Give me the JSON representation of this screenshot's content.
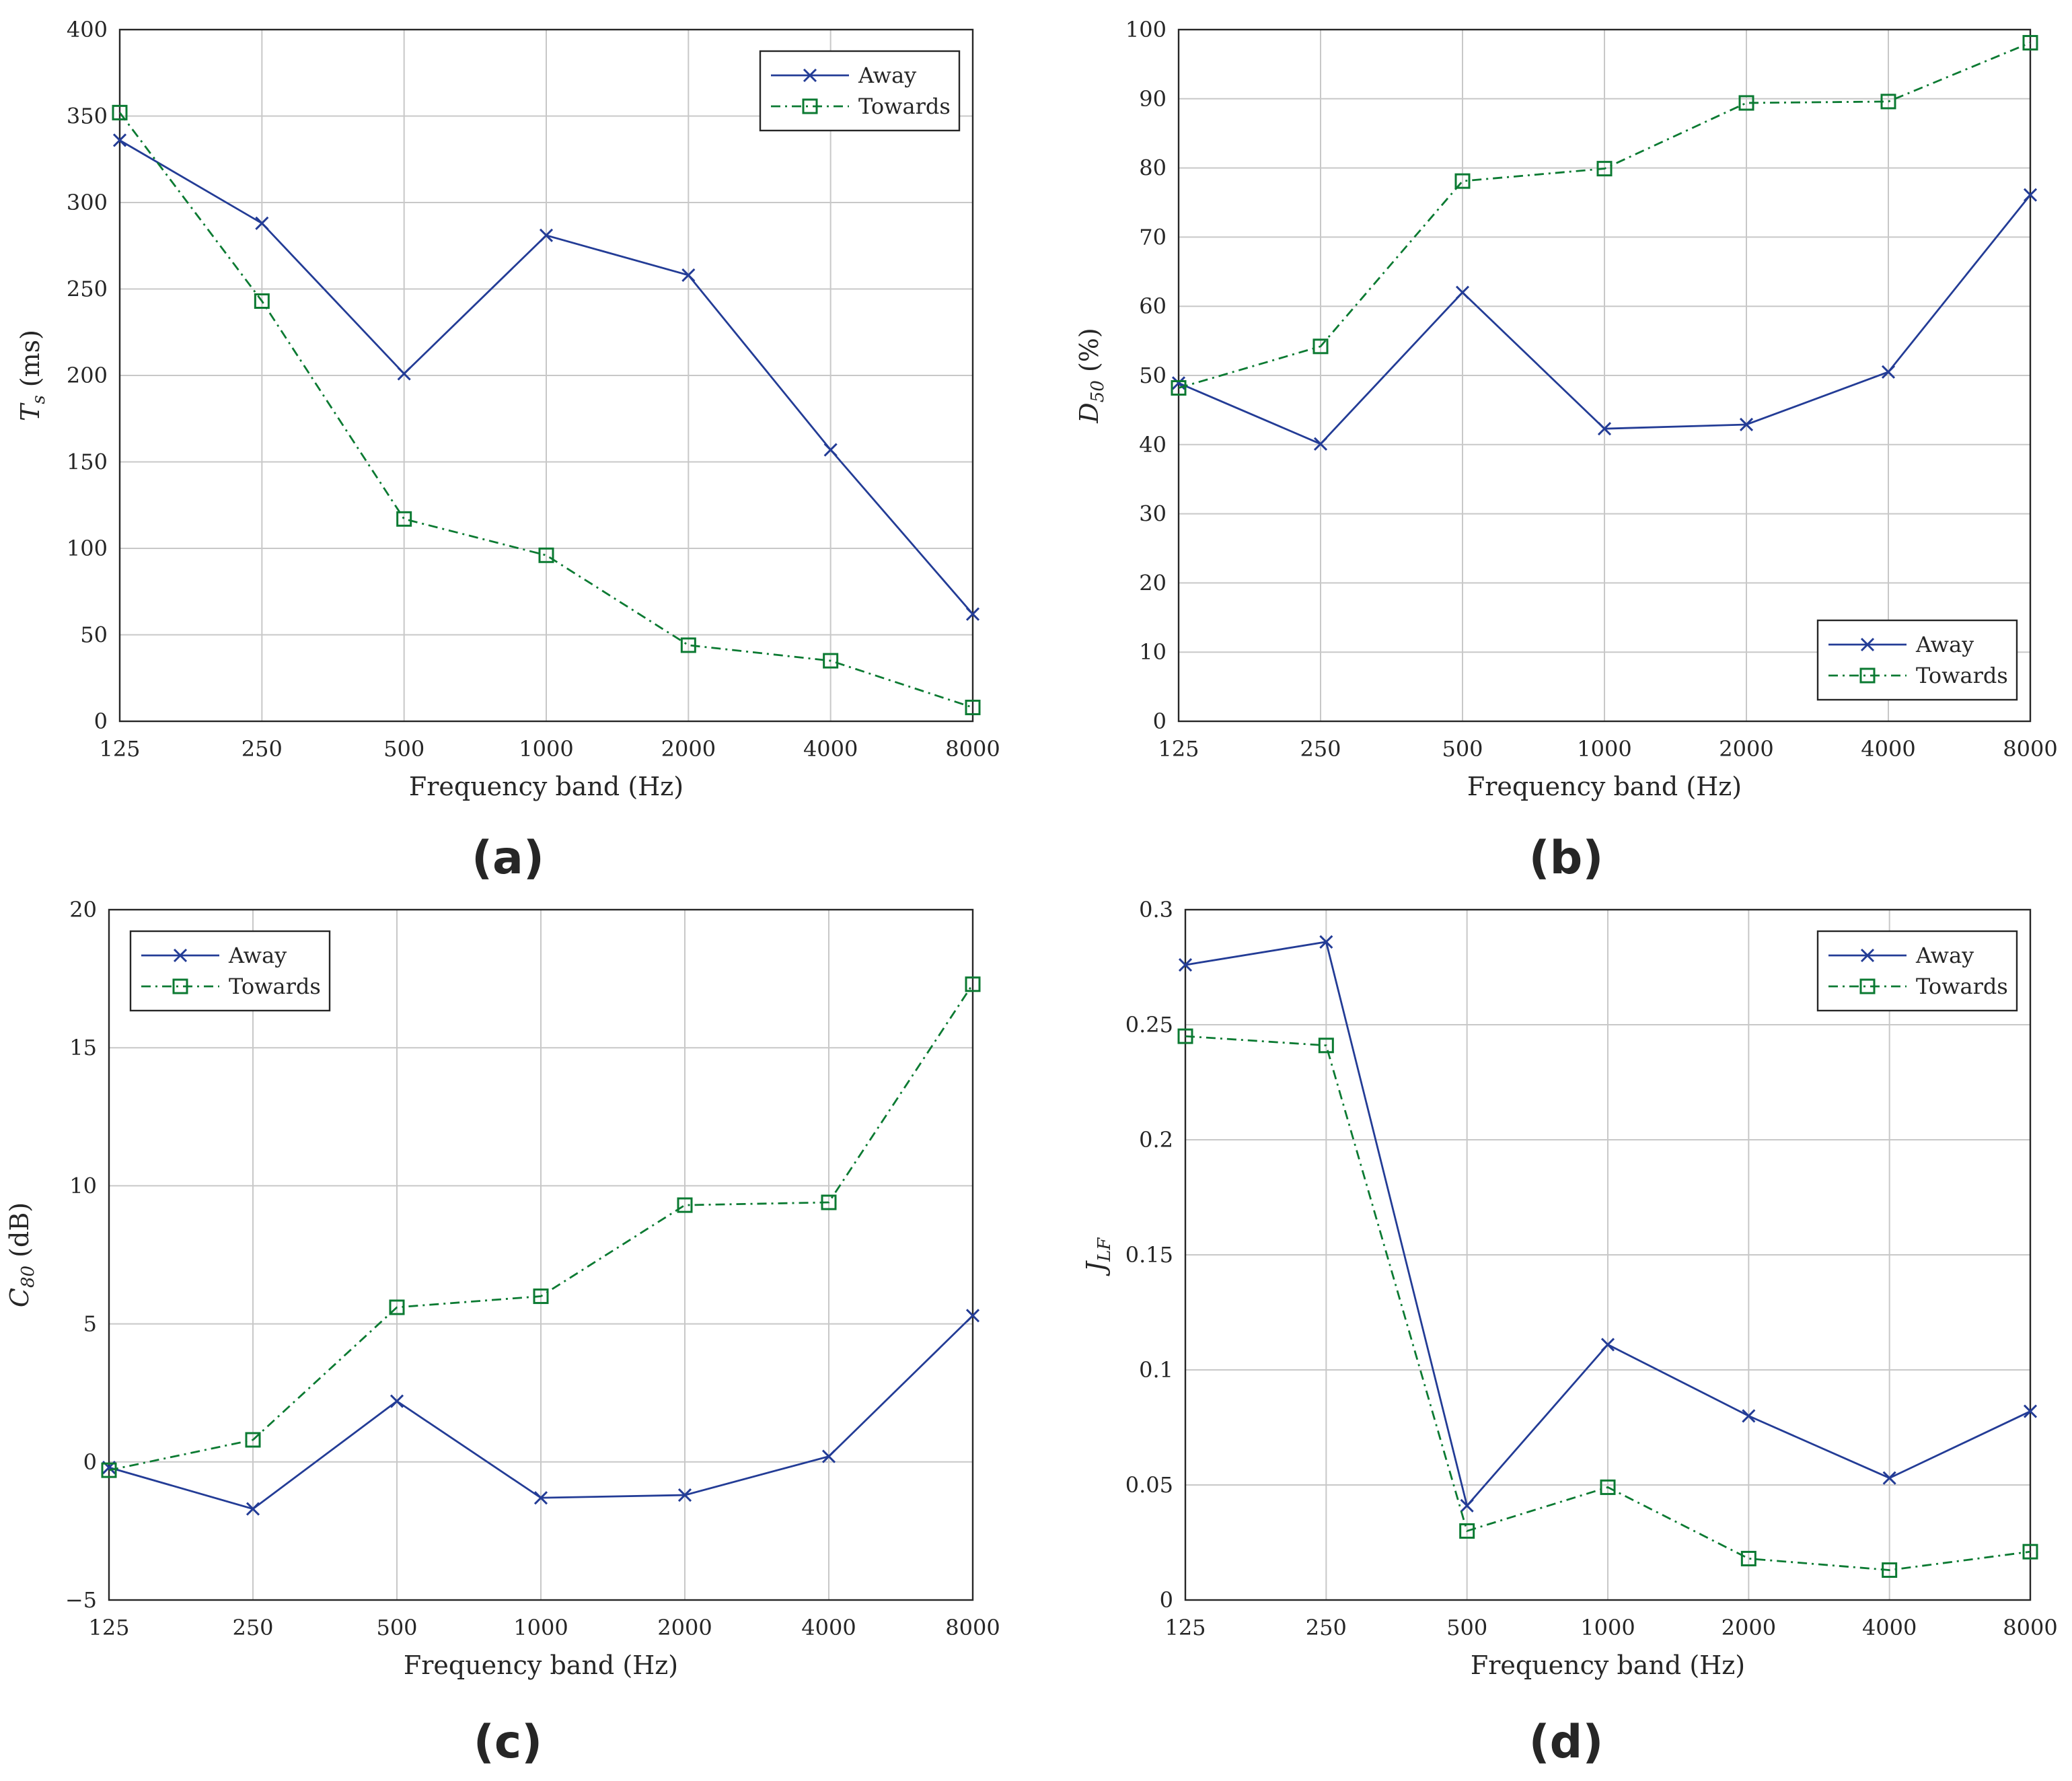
{
  "colors": {
    "away": "#233c96",
    "towards": "#0b7a32"
  },
  "chart_data": [
    {
      "id": "a",
      "type": "line",
      "panel_label": "(a)",
      "xlabel": "Frequency band (Hz)",
      "ylabel": "T_s (ms)",
      "ylabel_main": "T",
      "ylabel_sub": "s",
      "ylabel_unit": " (ms)",
      "categories": [
        "125",
        "250",
        "500",
        "1000",
        "2000",
        "4000",
        "8000"
      ],
      "ylim": [
        0,
        400
      ],
      "yticks": [
        0,
        50,
        100,
        150,
        200,
        250,
        300,
        350,
        400
      ],
      "ytick_labels": [
        "0",
        "50",
        "100",
        "150",
        "200",
        "250",
        "300",
        "350",
        "400"
      ],
      "grid": true,
      "legend_position": "top-right",
      "series": [
        {
          "name": "Away",
          "marker": "x",
          "style": "solid",
          "values": [
            336,
            288,
            201,
            281,
            258,
            157,
            62
          ]
        },
        {
          "name": "Towards",
          "marker": "square",
          "style": "dashdot",
          "values": [
            352,
            243,
            117,
            96,
            44,
            35,
            8
          ]
        }
      ]
    },
    {
      "id": "b",
      "type": "line",
      "panel_label": "(b)",
      "xlabel": "Frequency band (Hz)",
      "ylabel": "D_50 (%)",
      "ylabel_main": "D",
      "ylabel_sub": "50",
      "ylabel_unit": " (%)",
      "categories": [
        "125",
        "250",
        "500",
        "1000",
        "2000",
        "4000",
        "8000"
      ],
      "ylim": [
        0,
        100
      ],
      "yticks": [
        0,
        10,
        20,
        30,
        40,
        50,
        60,
        70,
        80,
        90,
        100
      ],
      "ytick_labels": [
        "0",
        "10",
        "20",
        "30",
        "40",
        "50",
        "60",
        "70",
        "80",
        "90",
        "100"
      ],
      "grid": true,
      "legend_position": "bottom-right",
      "series": [
        {
          "name": "Away",
          "marker": "x",
          "style": "solid",
          "values": [
            48.9,
            40.1,
            62,
            42.3,
            42.9,
            50.5,
            76.1
          ]
        },
        {
          "name": "Towards",
          "marker": "square",
          "style": "dashdot",
          "values": [
            48.2,
            54.2,
            78.1,
            79.9,
            89.4,
            89.6,
            98.1
          ]
        }
      ]
    },
    {
      "id": "c",
      "type": "line",
      "panel_label": "(c)",
      "xlabel": "Frequency band (Hz)",
      "ylabel": "C_80 (dB)",
      "ylabel_main": "C",
      "ylabel_sub": "80",
      "ylabel_unit": " (dB)",
      "categories": [
        "125",
        "250",
        "500",
        "1000",
        "2000",
        "4000",
        "8000"
      ],
      "ylim": [
        -5,
        20
      ],
      "yticks": [
        -5,
        0,
        5,
        10,
        15,
        20
      ],
      "ytick_labels": [
        "−5",
        "0",
        "5",
        "10",
        "15",
        "20"
      ],
      "grid": true,
      "legend_position": "top-left",
      "series": [
        {
          "name": "Away",
          "marker": "x",
          "style": "solid",
          "values": [
            -0.2,
            -1.7,
            2.2,
            -1.3,
            -1.2,
            0.2,
            5.3
          ]
        },
        {
          "name": "Towards",
          "marker": "square",
          "style": "dashdot",
          "values": [
            -0.3,
            0.8,
            5.6,
            6.0,
            9.3,
            9.4,
            17.3
          ]
        }
      ]
    },
    {
      "id": "d",
      "type": "line",
      "panel_label": "(d)",
      "xlabel": "Frequency band (Hz)",
      "ylabel": "J_LF",
      "ylabel_main": "J",
      "ylabel_sub": "LF",
      "ylabel_unit": "",
      "categories": [
        "125",
        "250",
        "500",
        "1000",
        "2000",
        "4000",
        "8000"
      ],
      "ylim": [
        0,
        0.3
      ],
      "yticks": [
        0,
        0.05,
        0.1,
        0.15,
        0.2,
        0.25,
        0.3
      ],
      "ytick_labels": [
        "0",
        "0.05",
        "0.1",
        "0.15",
        "0.2",
        "0.25",
        "0.3"
      ],
      "grid": true,
      "legend_position": "top-right",
      "series": [
        {
          "name": "Away",
          "marker": "x",
          "style": "solid",
          "values": [
            0.276,
            0.286,
            0.041,
            0.111,
            0.08,
            0.053,
            0.082
          ]
        },
        {
          "name": "Towards",
          "marker": "square",
          "style": "dashdot",
          "values": [
            0.245,
            0.241,
            0.03,
            0.049,
            0.018,
            0.013,
            0.021
          ]
        }
      ]
    }
  ]
}
